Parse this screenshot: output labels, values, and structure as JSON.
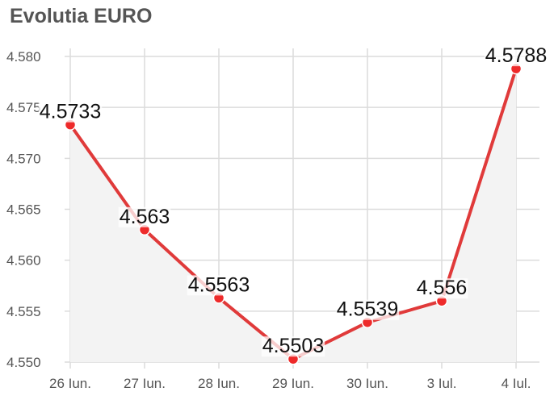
{
  "chart_data": {
    "type": "line",
    "title": "Evolutia EURO",
    "xlabel": "",
    "ylabel": "",
    "categories": [
      "26 Iun.",
      "27 Iun.",
      "28 Iun.",
      "29 Iun.",
      "30 Iun.",
      "3 Iul.",
      "4 Iul."
    ],
    "series": [
      {
        "values": [
          4.5733,
          4.563,
          4.5563,
          4.5503,
          4.5539,
          4.556,
          4.5788
        ]
      }
    ],
    "data_labels": [
      "4.5733",
      "4.563",
      "4.5563",
      "4.5503",
      "4.5539",
      "4.556",
      "4.5788"
    ],
    "y_ticks": [
      "4.550",
      "4.555",
      "4.560",
      "4.565",
      "4.570",
      "4.575",
      "4.580"
    ],
    "ylim": [
      4.55,
      4.58
    ],
    "grid": true,
    "area_fill": true,
    "legend": "none",
    "colors": {
      "line": "#e03a3a",
      "marker": "#ee2a2a",
      "area": "#f3f3f3",
      "grid": "#dcdcdc",
      "text": "#555555"
    }
  }
}
